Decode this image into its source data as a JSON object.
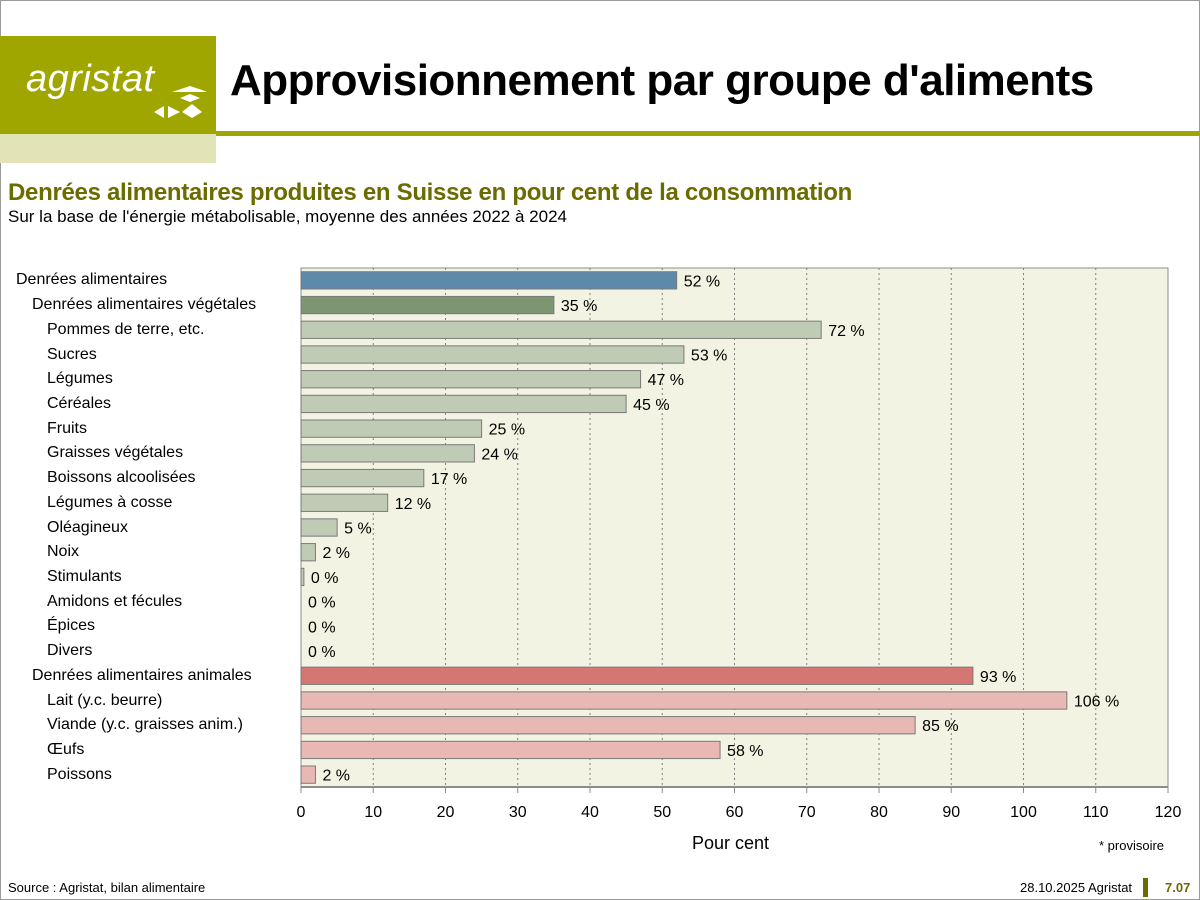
{
  "header": {
    "logo_text": "agristat",
    "title": "Approvisionnement par groupe d'aliments"
  },
  "colors": {
    "brand_olive": "#a0a600",
    "brand_light": "#e2e4b8",
    "subtitle_olive": "#6b6b00",
    "plot_bg": "#f3f3e3",
    "total": "#5e8aaa",
    "vegetal_group": "#7d9570",
    "vegetal_item": "#bfcbb5",
    "animal_group": "#d47773",
    "animal_item": "#e8b8b5"
  },
  "chart_data": {
    "type": "bar",
    "orientation": "horizontal",
    "title": "Denrées alimentaires produites en Suisse en pour cent de la consommation",
    "subtitle": "Sur la base de l'énergie métabolisable, moyenne des années 2022 à 2024",
    "xlabel": "Pour cent",
    "ylabel": "",
    "xlim": [
      0,
      120
    ],
    "xticks": [
      0,
      10,
      20,
      30,
      40,
      50,
      60,
      70,
      80,
      90,
      100,
      110,
      120
    ],
    "grid": "vertical-dotted",
    "value_suffix": " %",
    "categories": [
      {
        "label": "Denrées alimentaires",
        "value": 52,
        "level": 0,
        "kind": "total"
      },
      {
        "label": "Denrées alimentaires végétales",
        "value": 35,
        "level": 1,
        "kind": "vegetal_group"
      },
      {
        "label": "Pommes de terre, etc.",
        "value": 72,
        "level": 2,
        "kind": "vegetal_item"
      },
      {
        "label": "Sucres",
        "value": 53,
        "level": 2,
        "kind": "vegetal_item"
      },
      {
        "label": "Légumes",
        "value": 47,
        "level": 2,
        "kind": "vegetal_item"
      },
      {
        "label": "Céréales",
        "value": 45,
        "level": 2,
        "kind": "vegetal_item"
      },
      {
        "label": "Fruits",
        "value": 25,
        "level": 2,
        "kind": "vegetal_item"
      },
      {
        "label": "Graisses végétales",
        "value": 24,
        "level": 2,
        "kind": "vegetal_item"
      },
      {
        "label": "Boissons alcoolisées",
        "value": 17,
        "level": 2,
        "kind": "vegetal_item"
      },
      {
        "label": "Légumes à cosse",
        "value": 12,
        "level": 2,
        "kind": "vegetal_item"
      },
      {
        "label": "Oléagineux",
        "value": 5,
        "level": 2,
        "kind": "vegetal_item"
      },
      {
        "label": "Noix",
        "value": 2,
        "level": 2,
        "kind": "vegetal_item"
      },
      {
        "label": "Stimulants",
        "value": 0.4,
        "display": "0",
        "level": 2,
        "kind": "vegetal_item"
      },
      {
        "label": "Amidons et fécules",
        "value": 0,
        "level": 2,
        "kind": "vegetal_item"
      },
      {
        "label": "Épices",
        "value": 0,
        "level": 2,
        "kind": "vegetal_item"
      },
      {
        "label": "Divers",
        "value": 0,
        "level": 2,
        "kind": "vegetal_item"
      },
      {
        "label": "Denrées alimentaires animales",
        "value": 93,
        "level": 1,
        "kind": "animal_group"
      },
      {
        "label": "Lait (y.c. beurre)",
        "value": 106,
        "level": 2,
        "kind": "animal_item"
      },
      {
        "label": "Viande (y.c. graisses anim.)",
        "value": 85,
        "level": 2,
        "kind": "animal_item"
      },
      {
        "label": "Œufs",
        "value": 58,
        "level": 2,
        "kind": "animal_item"
      },
      {
        "label": "Poissons",
        "value": 2,
        "level": 2,
        "kind": "animal_item"
      }
    ],
    "note": "* provisoire"
  },
  "footer": {
    "source": "Source : Agristat, bilan alimentaire",
    "date": "28.10.2025 Agristat",
    "page": "7.07"
  }
}
